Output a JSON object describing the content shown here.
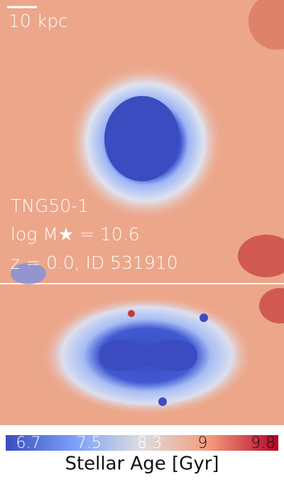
{
  "panel": {
    "scale_label": "10 kpc",
    "simulation": "TNG50-1",
    "mass_label": "log M★ = 10.6",
    "id_label": "z = 0.0, ID 531910"
  },
  "colorbar": {
    "label": "Stellar Age [Gyr]",
    "lim": [
      6.4,
      10.0
    ],
    "ticks": [
      6.7,
      7.5,
      8.3,
      9.0,
      9.8
    ]
  }
}
